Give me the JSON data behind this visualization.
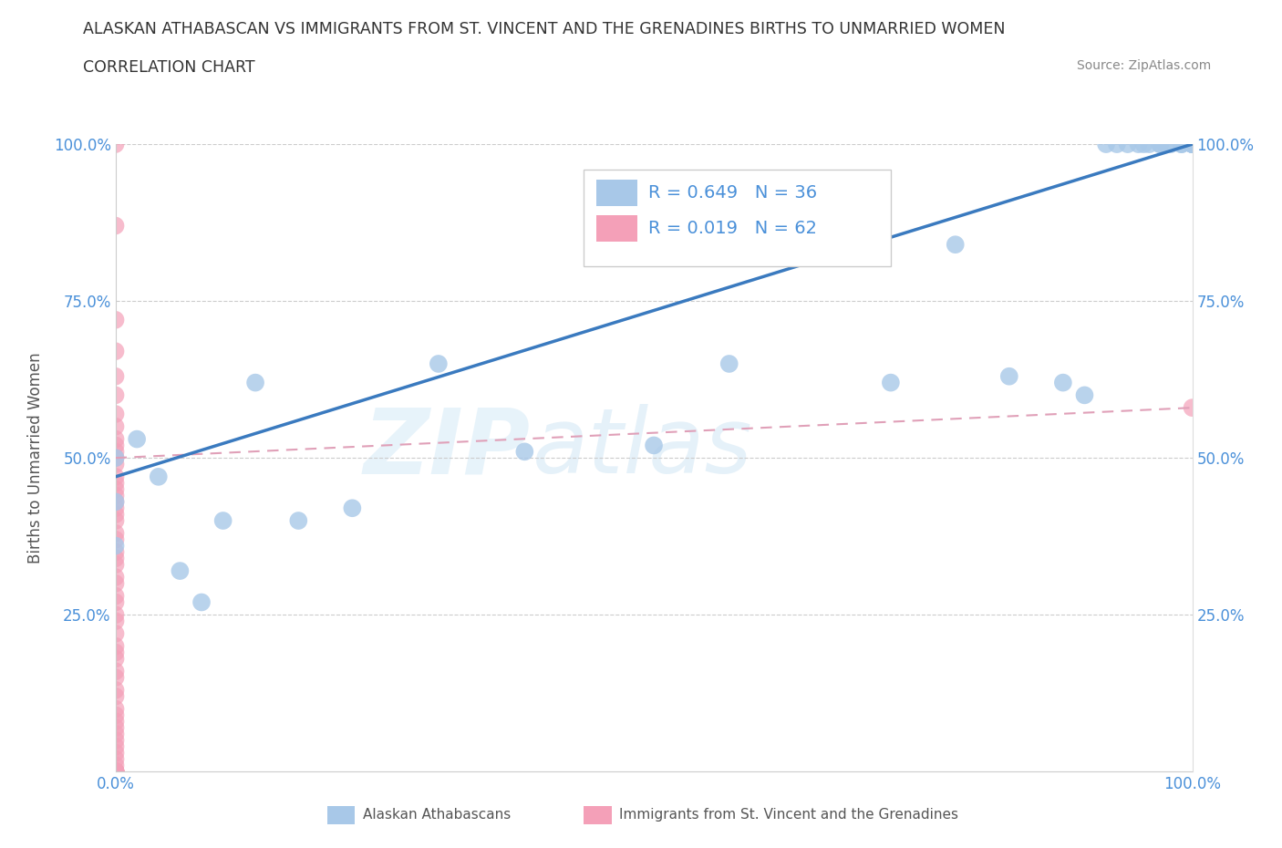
{
  "title_line1": "ALASKAN ATHABASCAN VS IMMIGRANTS FROM ST. VINCENT AND THE GRENADINES BIRTHS TO UNMARRIED WOMEN",
  "title_line2": "CORRELATION CHART",
  "source_text": "Source: ZipAtlas.com",
  "ylabel": "Births to Unmarried Women",
  "xmin": 0.0,
  "xmax": 1.0,
  "ymin": 0.0,
  "ymax": 1.0,
  "watermark_zip": "ZIP",
  "watermark_atlas": "atlas",
  "blue_color": "#a8c8e8",
  "pink_color": "#f4a0b8",
  "blue_line_color": "#3a7abf",
  "pink_line_color": "#e0a0b8",
  "legend_blue_label": "R = 0.649   N = 36",
  "legend_pink_label": "R = 0.019   N = 62",
  "legend_blue_series": "Alaskan Athabascans",
  "legend_pink_series": "Immigrants from St. Vincent and the Grenadines",
  "blue_line_x0": 0.0,
  "blue_line_y0": 0.47,
  "blue_line_x1": 1.0,
  "blue_line_y1": 1.0,
  "pink_line_x0": 0.0,
  "pink_line_y0": 0.5,
  "pink_line_x1": 1.0,
  "pink_line_y1": 0.58,
  "blue_points_x": [
    0.0,
    0.0,
    0.0,
    0.02,
    0.04,
    0.06,
    0.08,
    0.1,
    0.13,
    0.17,
    0.22,
    0.3,
    0.38,
    0.5,
    0.57,
    0.72,
    0.78,
    0.83,
    0.88,
    0.9,
    0.92,
    0.93,
    0.94,
    0.95,
    0.955,
    0.96,
    0.97,
    0.97,
    0.975,
    0.98,
    0.99,
    0.99,
    1.0,
    1.0,
    1.0,
    1.0
  ],
  "blue_points_y": [
    0.5,
    0.43,
    0.36,
    0.53,
    0.47,
    0.32,
    0.27,
    0.4,
    0.62,
    0.4,
    0.42,
    0.65,
    0.51,
    0.52,
    0.65,
    0.62,
    0.84,
    0.63,
    0.62,
    0.6,
    1.0,
    1.0,
    1.0,
    1.0,
    1.0,
    1.0,
    1.0,
    1.0,
    1.0,
    1.0,
    1.0,
    1.0,
    1.0,
    1.0,
    1.0,
    1.0
  ],
  "pink_points_x": [
    0.0,
    0.0,
    0.0,
    0.0,
    0.0,
    0.0,
    0.0,
    0.0,
    0.0,
    0.0,
    0.0,
    0.0,
    0.0,
    0.0,
    0.0,
    0.0,
    0.0,
    0.0,
    0.0,
    0.0,
    0.0,
    0.0,
    0.0,
    0.0,
    0.0,
    0.0,
    0.0,
    0.0,
    0.0,
    0.0,
    0.0,
    0.0,
    0.0,
    0.0,
    0.0,
    0.0,
    0.0,
    0.0,
    0.0,
    0.0,
    0.0,
    0.0,
    0.0,
    0.0,
    0.0,
    0.0,
    0.0,
    0.0,
    0.0,
    0.0,
    0.0,
    0.0,
    0.0,
    0.0,
    0.0,
    0.0,
    0.0,
    0.0,
    0.0,
    0.0,
    0.0,
    1.0
  ],
  "pink_points_y": [
    1.0,
    0.87,
    0.72,
    0.67,
    0.63,
    0.6,
    0.57,
    0.55,
    0.53,
    0.52,
    0.51,
    0.5,
    0.49,
    0.47,
    0.46,
    0.45,
    0.44,
    0.43,
    0.42,
    0.41,
    0.4,
    0.38,
    0.37,
    0.35,
    0.34,
    0.33,
    0.31,
    0.3,
    0.28,
    0.27,
    0.25,
    0.24,
    0.22,
    0.2,
    0.19,
    0.18,
    0.16,
    0.15,
    0.13,
    0.12,
    0.1,
    0.09,
    0.08,
    0.07,
    0.06,
    0.05,
    0.04,
    0.03,
    0.02,
    0.01,
    0.0,
    0.0,
    0.0,
    0.0,
    0.0,
    0.0,
    0.0,
    0.0,
    0.0,
    0.0,
    0.0,
    0.58
  ],
  "background_color": "#ffffff"
}
